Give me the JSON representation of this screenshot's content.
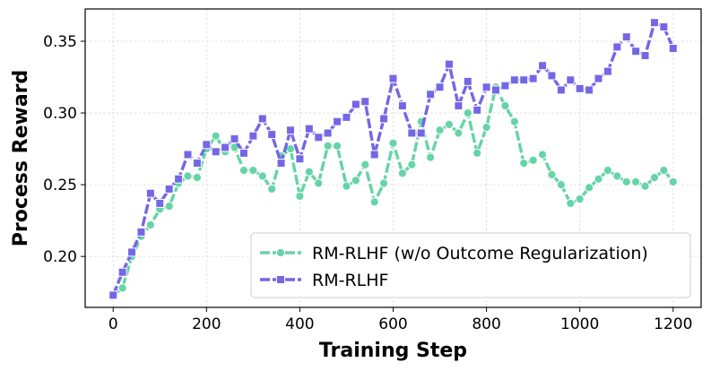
{
  "chart_data": {
    "type": "line",
    "xlabel": "Training Step",
    "ylabel": "Process Reward",
    "xlim": [
      -60,
      1260
    ],
    "ylim": [
      0.1645,
      0.3725
    ],
    "xticks": [
      0,
      200,
      400,
      600,
      800,
      1000,
      1200
    ],
    "yticks": [
      0.2,
      0.25,
      0.3,
      0.35
    ],
    "ytick_labels": [
      "0.20",
      "0.25",
      "0.30",
      "0.35"
    ],
    "grid": true,
    "legend_position": "lower-right",
    "series": [
      {
        "name": "RM-RLHF (w/o Outcome Regularization)",
        "color": "#66d4a6",
        "marker": "circle",
        "x": [
          0,
          20,
          40,
          60,
          80,
          100,
          120,
          140,
          160,
          180,
          200,
          220,
          240,
          260,
          280,
          300,
          320,
          340,
          360,
          380,
          400,
          420,
          440,
          460,
          480,
          500,
          520,
          540,
          560,
          580,
          600,
          620,
          640,
          660,
          680,
          700,
          720,
          740,
          760,
          780,
          800,
          820,
          840,
          860,
          880,
          900,
          920,
          940,
          960,
          980,
          1000,
          1020,
          1040,
          1060,
          1080,
          1100,
          1120,
          1140,
          1160,
          1180,
          1200
        ],
        "y": [
          0.173,
          0.178,
          0.2,
          0.214,
          0.222,
          0.233,
          0.235,
          0.251,
          0.256,
          0.255,
          0.275,
          0.284,
          0.273,
          0.276,
          0.26,
          0.26,
          0.256,
          0.247,
          0.27,
          0.275,
          0.242,
          0.259,
          0.251,
          0.277,
          0.277,
          0.249,
          0.253,
          0.264,
          0.238,
          0.251,
          0.279,
          0.258,
          0.264,
          0.294,
          0.269,
          0.288,
          0.292,
          0.286,
          0.3,
          0.272,
          0.29,
          0.318,
          0.305,
          0.294,
          0.265,
          0.267,
          0.271,
          0.257,
          0.25,
          0.237,
          0.24,
          0.248,
          0.254,
          0.26,
          0.256,
          0.252,
          0.252,
          0.249,
          0.255,
          0.26,
          0.252
        ]
      },
      {
        "name": "RM-RLHF",
        "color": "#7467e6",
        "marker": "square",
        "x": [
          0,
          20,
          40,
          60,
          80,
          100,
          120,
          140,
          160,
          180,
          200,
          220,
          240,
          260,
          280,
          300,
          320,
          340,
          360,
          380,
          400,
          420,
          440,
          460,
          480,
          500,
          520,
          540,
          560,
          580,
          600,
          620,
          640,
          660,
          680,
          700,
          720,
          740,
          760,
          780,
          800,
          820,
          840,
          860,
          880,
          900,
          920,
          940,
          960,
          980,
          1000,
          1020,
          1040,
          1060,
          1080,
          1100,
          1120,
          1140,
          1160,
          1180,
          1200
        ],
        "y": [
          0.173,
          0.189,
          0.203,
          0.217,
          0.244,
          0.237,
          0.247,
          0.254,
          0.271,
          0.265,
          0.278,
          0.273,
          0.276,
          0.282,
          0.272,
          0.284,
          0.296,
          0.285,
          0.265,
          0.288,
          0.268,
          0.289,
          0.283,
          0.286,
          0.294,
          0.297,
          0.306,
          0.308,
          0.271,
          0.296,
          0.324,
          0.305,
          0.286,
          0.286,
          0.313,
          0.318,
          0.334,
          0.305,
          0.322,
          0.302,
          0.318,
          0.316,
          0.319,
          0.323,
          0.323,
          0.324,
          0.333,
          0.326,
          0.316,
          0.323,
          0.317,
          0.316,
          0.324,
          0.329,
          0.346,
          0.353,
          0.343,
          0.34,
          0.363,
          0.36,
          0.345
        ]
      }
    ]
  }
}
